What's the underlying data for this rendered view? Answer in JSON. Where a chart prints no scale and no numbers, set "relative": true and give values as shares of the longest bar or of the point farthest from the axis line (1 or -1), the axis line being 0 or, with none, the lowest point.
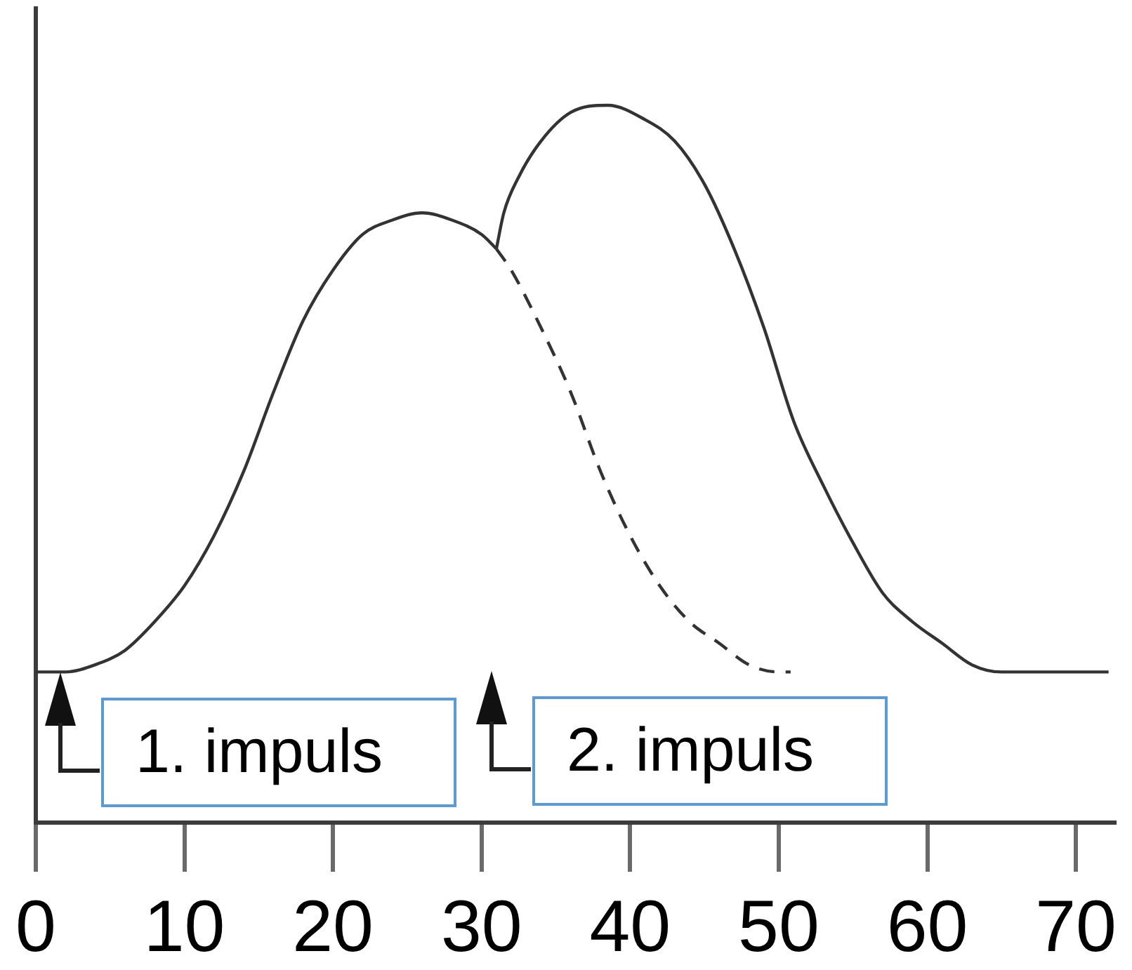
{
  "chart_data": {
    "type": "line",
    "relative": true,
    "xlim": [
      0,
      72.7
    ],
    "xticks": [
      0,
      10,
      20,
      30,
      40,
      50,
      60,
      70
    ],
    "series": [
      {
        "color": "#333333",
        "x": [
          0,
          2,
          4,
          6,
          8,
          10,
          12,
          14,
          16,
          18,
          20,
          22,
          24,
          26,
          28,
          30,
          31
        ],
        "values": [
          0.21,
          0.21,
          0.22,
          0.24,
          0.28,
          0.33,
          0.4,
          0.49,
          0.6,
          0.7,
          0.77,
          0.82,
          0.84,
          0.85,
          0.84,
          0.82,
          0.8
        ]
      },
      {
        "color": "#333333",
        "line_style": "dashed",
        "x": [
          31,
          32,
          34,
          36,
          38,
          40,
          42,
          44,
          46,
          48,
          50,
          50.8
        ],
        "values": [
          0.8,
          0.77,
          0.69,
          0.6,
          0.49,
          0.4,
          0.33,
          0.28,
          0.25,
          0.22,
          0.21,
          0.21
        ]
      },
      {
        "color": "#333333",
        "x": [
          31,
          31.5,
          32.5,
          34,
          36,
          38.5,
          41,
          43,
          45,
          47,
          49,
          51,
          53,
          55,
          57,
          59,
          61,
          63,
          65,
          68,
          72.2
        ],
        "values": [
          0.8,
          0.85,
          0.9,
          0.95,
          0.99,
          1.0,
          0.98,
          0.95,
          0.89,
          0.8,
          0.69,
          0.56,
          0.47,
          0.39,
          0.32,
          0.28,
          0.25,
          0.22,
          0.21,
          0.21,
          0.21
        ]
      }
    ],
    "annotations": [
      {
        "text": "1. impuls",
        "x": 1.7,
        "y": 0.21
      },
      "2. impuls"
    ]
  }
}
